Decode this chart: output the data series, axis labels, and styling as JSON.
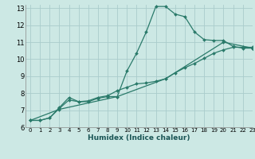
{
  "title": "",
  "xlabel": "Humidex (Indice chaleur)",
  "ylabel": "",
  "bg_color": "#cce8e4",
  "grid_color": "#aacccc",
  "line_color": "#2a7a6a",
  "xlim": [
    -0.5,
    23
  ],
  "ylim": [
    6,
    13.2
  ],
  "xticks": [
    0,
    1,
    2,
    3,
    4,
    5,
    6,
    7,
    8,
    9,
    10,
    11,
    12,
    13,
    14,
    15,
    16,
    17,
    18,
    19,
    20,
    21,
    22,
    23
  ],
  "yticks": [
    6,
    7,
    8,
    9,
    10,
    11,
    12,
    13
  ],
  "line1_x": [
    0,
    1,
    2,
    3,
    4,
    5,
    6,
    7,
    8,
    9,
    10,
    11,
    12,
    13,
    14,
    15,
    16,
    17,
    18,
    19,
    20,
    21,
    22,
    23
  ],
  "line1_y": [
    6.4,
    6.4,
    6.55,
    7.1,
    7.6,
    7.5,
    7.5,
    7.7,
    7.8,
    7.8,
    9.3,
    10.35,
    11.6,
    13.1,
    13.1,
    12.65,
    12.5,
    11.6,
    11.15,
    11.1,
    11.1,
    10.75,
    10.65,
    10.65
  ],
  "line2_x": [
    0,
    1,
    2,
    3,
    4,
    5,
    6,
    7,
    8,
    9,
    10,
    11,
    12,
    13,
    14,
    15,
    16,
    17,
    18,
    19,
    20,
    21,
    22,
    23
  ],
  "line2_y": [
    6.4,
    6.4,
    6.55,
    7.15,
    7.75,
    7.5,
    7.55,
    7.75,
    7.85,
    8.15,
    8.35,
    8.55,
    8.6,
    8.7,
    8.85,
    9.2,
    9.5,
    9.75,
    10.05,
    10.35,
    10.55,
    10.7,
    10.7,
    10.7
  ],
  "line3_x": [
    0,
    3,
    9,
    14,
    20,
    23
  ],
  "line3_y": [
    6.4,
    7.05,
    7.8,
    8.85,
    11.0,
    10.65
  ]
}
